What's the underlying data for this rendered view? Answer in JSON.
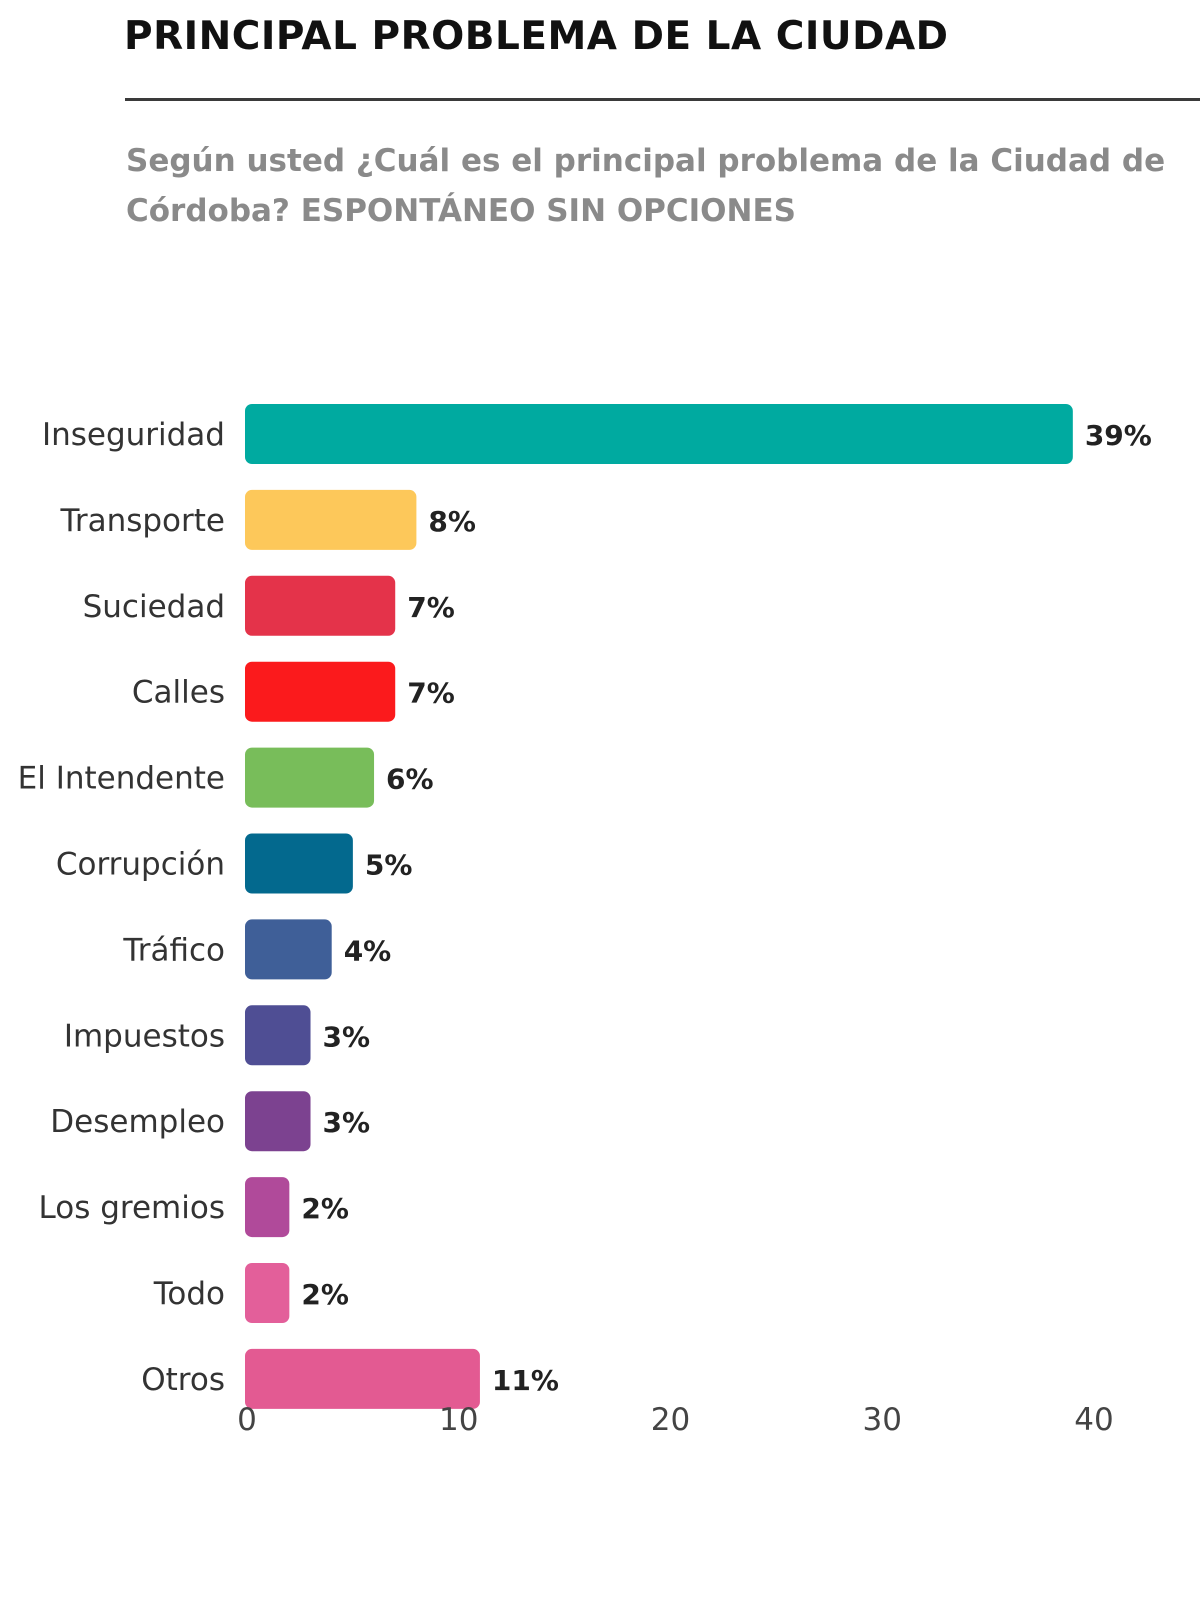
{
  "header": {
    "title": "PRINCIPAL PROBLEMA DE LA CIUDAD",
    "subtitle": "Según usted ¿Cuál es el principal problema de la Ciudad de Córdoba?  ESPONTÁNEO SIN OPCIONES"
  },
  "chart_data": {
    "type": "bar",
    "orientation": "horizontal",
    "categories": [
      "Inseguridad",
      "Transporte",
      "Suciedad",
      "Calles",
      "El Intendente",
      "Corrupción",
      "Tráfico",
      "Impuestos",
      "Desempleo",
      "Los gremios",
      "Todo",
      "Otros"
    ],
    "values": [
      39,
      8,
      7,
      7,
      6,
      5,
      4,
      3,
      3,
      2,
      2,
      11
    ],
    "value_labels": [
      "39%",
      "8%",
      "7%",
      "7%",
      "6%",
      "5%",
      "4%",
      "3%",
      "3%",
      "2%",
      "2%",
      "11%"
    ],
    "colors": [
      "#00aaa0",
      "#fdc85a",
      "#e4334a",
      "#fb1a1c",
      "#78bd5a",
      "#03698e",
      "#3f5f98",
      "#4f4e94",
      "#7c4290",
      "#b04a9a",
      "#e35f9a",
      "#e35a92"
    ],
    "xticks": [
      0,
      10,
      20,
      30,
      40
    ],
    "xlim": [
      0,
      40
    ],
    "grid": false,
    "legend": "none"
  }
}
